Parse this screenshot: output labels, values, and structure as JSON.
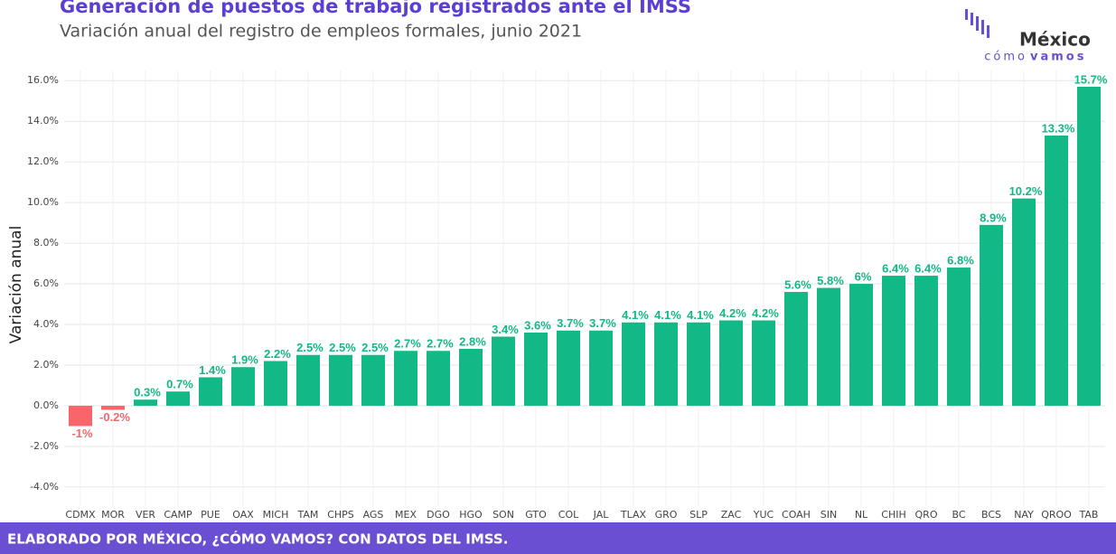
{
  "chart_data": {
    "type": "bar",
    "title": "Generación de puestos de trabajo registrados ante el IMSS",
    "subtitle": "Variación anual del registro de empleos formales, junio 2021",
    "y_label": "Variación anual",
    "footer": "ELABORADO POR MÉXICO, ¿CÓMO VAMOS? CON DATOS DEL IMSS.",
    "logo": {
      "name": "México",
      "tagline_1": "cómo",
      "tagline_2": "vamos"
    },
    "categories": [
      "CDMX",
      "MOR",
      "VER",
      "CAMP",
      "PUE",
      "OAX",
      "MICH",
      "TAM",
      "CHPS",
      "AGS",
      "MEX",
      "DGO",
      "HGO",
      "SON",
      "GTO",
      "COL",
      "JAL",
      "TLAX",
      "GRO",
      "SLP",
      "ZAC",
      "YUC",
      "COAH",
      "SIN",
      "NL",
      "CHIH",
      "QRO",
      "BC",
      "BCS",
      "NAY",
      "QROO",
      "TAB"
    ],
    "values": [
      -1,
      -0.2,
      0.3,
      0.7,
      1.4,
      1.9,
      2.2,
      2.5,
      2.5,
      2.5,
      2.7,
      2.7,
      2.8,
      3.4,
      3.6,
      3.7,
      3.7,
      4.1,
      4.1,
      4.1,
      4.2,
      4.2,
      5.6,
      5.8,
      6,
      6.4,
      6.4,
      6.8,
      8.9,
      10.2,
      13.3,
      15.7
    ],
    "value_labels": [
      "-1%",
      "-0.2%",
      "0.3%",
      "0.7%",
      "1.4%",
      "1.9%",
      "2.2%",
      "2.5%",
      "2.5%",
      "2.5%",
      "2.7%",
      "2.7%",
      "2.8%",
      "3.4%",
      "3.6%",
      "3.7%",
      "3.7%",
      "4.1%",
      "4.1%",
      "4.1%",
      "4.2%",
      "4.2%",
      "5.6%",
      "5.8%",
      "6%",
      "6.4%",
      "6.4%",
      "6.8%",
      "8.9%",
      "10.2%",
      "13.3%",
      "15.7%"
    ],
    "color": "#12b886",
    "negative_color": "#f8666b",
    "ylim": [
      -4.94,
      16.5
    ],
    "yticks": [
      {
        "value": -4,
        "label": "-4.0%"
      },
      {
        "value": -2,
        "label": "-2.0%"
      },
      {
        "value": 0,
        "label": "0.0%"
      },
      {
        "value": 2,
        "label": "2.0%"
      },
      {
        "value": 4,
        "label": "4.0%"
      },
      {
        "value": 6,
        "label": "6.0%"
      },
      {
        "value": 8,
        "label": "8.0%"
      },
      {
        "value": 10,
        "label": "10.0%"
      },
      {
        "value": 12,
        "label": "12.0%"
      },
      {
        "value": 14,
        "label": "14.0%"
      },
      {
        "value": 16,
        "label": "16.0%"
      }
    ],
    "grid": true
  }
}
